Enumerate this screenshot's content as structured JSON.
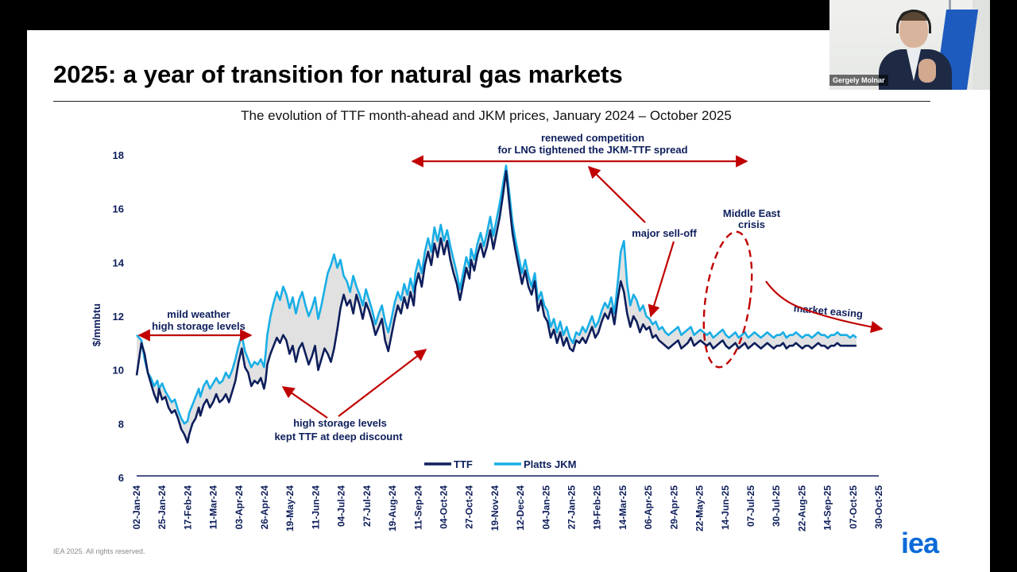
{
  "slide": {
    "title": "2025: a year of transition for natural gas markets",
    "footer": "IEA 2025. All rights reserved.",
    "logo": "iea"
  },
  "webcam": {
    "name": "Gergely Molnar"
  },
  "chart_data": {
    "type": "line",
    "title": "The evolution of TTF month-ahead and JKM prices, January 2024 – October 2025",
    "ylabel": "$/mmbtu",
    "ylim": [
      6,
      18
    ],
    "yticks": [
      6,
      8,
      10,
      12,
      14,
      16,
      18
    ],
    "xlabels": [
      "02-Jan-24",
      "25-Jan-24",
      "17-Feb-24",
      "11-Mar-24",
      "03-Apr-24",
      "26-Apr-24",
      "19-May-24",
      "11-Jun-24",
      "04-Jul-24",
      "27-Jul-24",
      "19-Aug-24",
      "11-Sep-24",
      "04-Oct-24",
      "27-Oct-24",
      "19-Nov-24",
      "12-Dec-24",
      "04-Jan-25",
      "27-Jan-25",
      "19-Feb-25",
      "14-Mar-25",
      "06-Apr-25",
      "29-Apr-25",
      "22-May-25",
      "14-Jun-25",
      "07-Jul-25",
      "30-Jul-25",
      "22-Aug-25",
      "14-Sep-25",
      "07-Oct-25",
      "30-Oct-25"
    ],
    "x_index": [
      0,
      3,
      5,
      7,
      9,
      11,
      13,
      14,
      16,
      18,
      20,
      22,
      24,
      26,
      28,
      30,
      32,
      33,
      35,
      37,
      39,
      40,
      42,
      44,
      46,
      48,
      50,
      52,
      54,
      56,
      58,
      60,
      62,
      64,
      66,
      68,
      70,
      72,
      74,
      76,
      78,
      80,
      81,
      82,
      84,
      86,
      88,
      90,
      92,
      94,
      96,
      98,
      100,
      102,
      104,
      106,
      108,
      110,
      112,
      114,
      116,
      118,
      120,
      122,
      124,
      126,
      128,
      130,
      132,
      134,
      136,
      138,
      140,
      142,
      144,
      146,
      148,
      150,
      152,
      154,
      156,
      158,
      160,
      162,
      164,
      166,
      168,
      170,
      172,
      174,
      175,
      177,
      179,
      181,
      183,
      185,
      187,
      189,
      191,
      193,
      195,
      197,
      199,
      201,
      203,
      205,
      207,
      209,
      210,
      212,
      214,
      216,
      218,
      220,
      222,
      224,
      226,
      228,
      230,
      232,
      234,
      236,
      238,
      240,
      242,
      244,
      246,
      248,
      250,
      252,
      254,
      256,
      258,
      260,
      262,
      264,
      266,
      268,
      270,
      272,
      274,
      276,
      278,
      280,
      282,
      284,
      286,
      288,
      290,
      292,
      294,
      296,
      298,
      300,
      302,
      304,
      306,
      308,
      310,
      312,
      314,
      316,
      318,
      320,
      322,
      324,
      326,
      328,
      330,
      332,
      334,
      336,
      338,
      340,
      342,
      344,
      346,
      348,
      350,
      352,
      354,
      356,
      358,
      360,
      362,
      364,
      366,
      368,
      370,
      372,
      374,
      376,
      378,
      380,
      382,
      384,
      386,
      388,
      390,
      392,
      394,
      396,
      398,
      400,
      402,
      404,
      406,
      408,
      410,
      412,
      414,
      416,
      418,
      420,
      422,
      424,
      426,
      428,
      430,
      432,
      434,
      436,
      438,
      440,
      442,
      444,
      446,
      448,
      450,
      452,
      454,
      456,
      458,
      460,
      462,
      464,
      466
    ],
    "x_range": [
      0,
      466
    ],
    "series": [
      {
        "name": "TTF",
        "color": "#0e1e5b",
        "values": [
          9.8,
          11.0,
          10.6,
          9.9,
          9.5,
          9.1,
          8.8,
          9.3,
          8.9,
          9.0,
          8.6,
          8.4,
          8.5,
          8.2,
          7.8,
          7.6,
          7.3,
          7.6,
          8.0,
          8.2,
          8.6,
          8.3,
          8.7,
          8.9,
          8.6,
          8.8,
          9.1,
          8.8,
          8.9,
          9.1,
          8.8,
          9.2,
          9.6,
          10.3,
          10.8,
          10.1,
          9.9,
          9.4,
          9.6,
          9.5,
          9.7,
          9.3,
          9.6,
          10.2,
          10.6,
          10.9,
          11.2,
          11.0,
          11.3,
          11.1,
          10.6,
          10.9,
          10.3,
          10.8,
          11.0,
          10.6,
          10.2,
          10.5,
          10.9,
          10.0,
          10.4,
          10.8,
          10.6,
          10.3,
          10.8,
          11.5,
          12.3,
          12.8,
          12.4,
          12.6,
          12.1,
          12.8,
          12.4,
          11.9,
          12.5,
          12.2,
          11.8,
          11.3,
          11.6,
          11.9,
          11.1,
          10.7,
          11.3,
          11.9,
          12.4,
          12.1,
          12.7,
          12.3,
          12.9,
          12.4,
          13.1,
          13.6,
          13.1,
          13.9,
          14.4,
          13.9,
          14.7,
          14.2,
          14.9,
          14.3,
          14.8,
          14.1,
          13.6,
          13.2,
          12.6,
          13.2,
          13.8,
          13.4,
          14.1,
          13.7,
          14.3,
          14.7,
          14.2,
          14.6,
          15.2,
          14.5,
          15.1,
          15.7,
          16.5,
          17.4,
          16.2,
          15.1,
          14.4,
          13.8,
          13.2,
          13.7,
          13.1,
          12.8,
          13.3,
          12.2,
          12.6,
          12.0,
          11.8,
          11.2,
          11.5,
          11.0,
          11.4,
          10.9,
          11.2,
          10.8,
          10.7,
          11.1,
          11.0,
          11.2,
          11.0,
          11.3,
          11.6,
          11.2,
          11.4,
          11.8,
          12.1,
          11.9,
          12.3,
          11.7,
          12.6,
          13.3,
          12.9,
          12.1,
          11.6,
          12.0,
          11.8,
          11.4,
          11.7,
          11.5,
          11.6,
          11.2,
          11.3,
          11.1,
          11.0,
          10.9,
          10.8,
          10.9,
          11.0,
          11.1,
          10.8,
          10.9,
          11.0,
          11.2,
          10.9,
          11.0,
          11.1,
          11.0,
          10.9,
          11.0,
          10.8,
          10.9,
          11.0,
          11.1,
          10.9,
          10.8,
          10.9,
          11.0,
          10.8,
          10.9,
          11.0,
          10.8,
          10.9,
          11.0,
          10.9,
          10.8,
          10.9,
          11.0,
          10.9,
          10.8,
          10.9,
          10.9,
          11.0,
          10.8,
          10.9,
          10.9,
          11.0,
          10.9,
          10.8,
          10.9,
          10.9,
          10.8,
          10.9,
          11.0,
          10.9,
          10.9,
          10.8,
          10.9,
          10.9,
          11.0,
          10.9,
          10.9,
          10.9,
          10.9,
          10.9,
          10.9
        ]
      },
      {
        "name": "Platts JKM",
        "color": "#19aee6",
        "values": [
          11.3,
          11.1,
          10.4,
          9.9,
          9.7,
          9.4,
          9.6,
          9.3,
          9.5,
          9.2,
          9.0,
          8.8,
          8.9,
          8.5,
          8.2,
          8.0,
          8.1,
          8.4,
          8.7,
          9.0,
          9.3,
          9.0,
          9.4,
          9.6,
          9.3,
          9.5,
          9.7,
          9.5,
          9.6,
          9.9,
          9.7,
          10.0,
          10.4,
          10.9,
          11.3,
          10.7,
          10.4,
          10.1,
          10.3,
          10.2,
          10.4,
          10.1,
          10.6,
          11.3,
          12.0,
          12.5,
          12.9,
          12.6,
          13.1,
          12.8,
          12.3,
          12.7,
          12.1,
          12.6,
          12.9,
          12.4,
          12.0,
          12.3,
          12.7,
          11.9,
          12.4,
          13.0,
          13.6,
          13.9,
          14.3,
          13.8,
          14.1,
          13.5,
          13.3,
          12.9,
          13.5,
          13.1,
          12.8,
          12.4,
          13.0,
          12.6,
          12.2,
          11.7,
          12.1,
          12.4,
          11.8,
          11.4,
          11.9,
          12.5,
          12.9,
          12.6,
          13.2,
          12.8,
          13.4,
          12.9,
          13.6,
          14.1,
          13.6,
          14.4,
          14.9,
          14.4,
          15.3,
          14.8,
          15.4,
          14.8,
          15.2,
          14.6,
          14.1,
          13.6,
          13.0,
          13.6,
          14.2,
          13.8,
          14.5,
          14.1,
          14.7,
          15.1,
          14.6,
          15.1,
          15.7,
          15.0,
          15.6,
          16.2,
          16.9,
          17.6,
          16.6,
          15.5,
          14.8,
          14.2,
          13.6,
          14.1,
          13.5,
          13.1,
          13.6,
          12.6,
          12.9,
          12.4,
          12.2,
          11.6,
          11.9,
          11.4,
          11.8,
          11.3,
          11.6,
          11.2,
          11.0,
          11.4,
          11.3,
          11.6,
          11.4,
          11.7,
          12.0,
          11.6,
          11.8,
          12.2,
          12.5,
          12.3,
          12.7,
          12.1,
          13.2,
          14.4,
          14.8,
          13.2,
          12.4,
          12.8,
          12.6,
          12.2,
          12.4,
          12.0,
          11.9,
          11.7,
          11.8,
          11.5,
          11.6,
          11.4,
          11.3,
          11.4,
          11.5,
          11.6,
          11.3,
          11.4,
          11.5,
          11.6,
          11.3,
          11.4,
          11.5,
          11.4,
          11.3,
          11.4,
          11.2,
          11.3,
          11.4,
          11.5,
          11.3,
          11.2,
          11.3,
          11.4,
          11.2,
          11.3,
          11.4,
          11.2,
          11.3,
          11.4,
          11.3,
          11.2,
          11.3,
          11.4,
          11.3,
          11.2,
          11.3,
          11.3,
          11.4,
          11.2,
          11.3,
          11.3,
          11.4,
          11.3,
          11.2,
          11.3,
          11.3,
          11.2,
          11.3,
          11.4,
          11.3,
          11.3,
          11.2,
          11.3,
          11.3,
          11.4,
          11.3,
          11.3,
          11.3,
          11.2,
          11.3,
          11.2
        ]
      }
    ],
    "annotations": {
      "mild_weather": "mild weather",
      "high_storage": "high storage levels",
      "storage_discount_1": "high storage levels",
      "storage_discount_2": "kept TTF at deep discount",
      "competition_1": "renewed competition",
      "competition_2": "for LNG tightened the JKM-TTF spread",
      "selloff": "major sell-off",
      "crisis_1": "Middle East",
      "crisis_2": "crisis",
      "easing": "market easing"
    },
    "legend": {
      "position": "bottom-center",
      "entries": [
        "TTF",
        "Platts JKM"
      ]
    },
    "grid": false
  }
}
